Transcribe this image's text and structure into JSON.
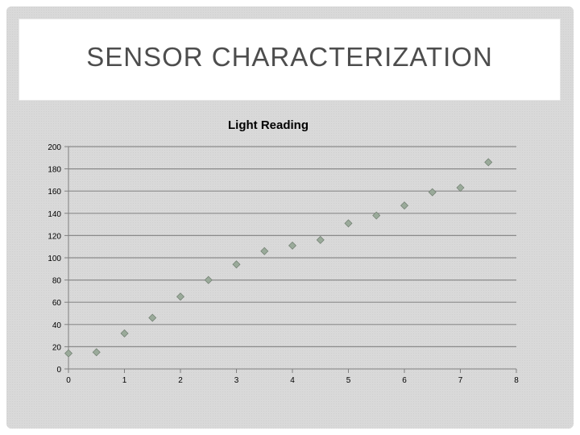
{
  "slide": {
    "title": "SENSOR CHARACTERIZATION"
  },
  "chart_data": {
    "type": "scatter",
    "title": "Light Reading",
    "xlabel": "",
    "ylabel": "",
    "xlim": [
      0,
      8
    ],
    "ylim": [
      0,
      200
    ],
    "xticks": [
      0,
      1,
      2,
      3,
      4,
      5,
      6,
      7,
      8
    ],
    "yticks": [
      0,
      20,
      40,
      60,
      80,
      100,
      120,
      140,
      160,
      180,
      200
    ],
    "grid": true,
    "legend": "none",
    "marker": "diamond",
    "marker_color": "#9aaa9a",
    "series": [
      {
        "x": [
          0,
          0.5,
          1,
          1.5,
          2,
          2.5,
          3,
          3.5,
          4,
          4.5,
          5,
          5.5,
          6,
          6.5,
          7,
          7.5
        ],
        "y": [
          14,
          15,
          32,
          46,
          65,
          80,
          94,
          106,
          111,
          116,
          131,
          138,
          147,
          159,
          163,
          186
        ]
      }
    ]
  }
}
